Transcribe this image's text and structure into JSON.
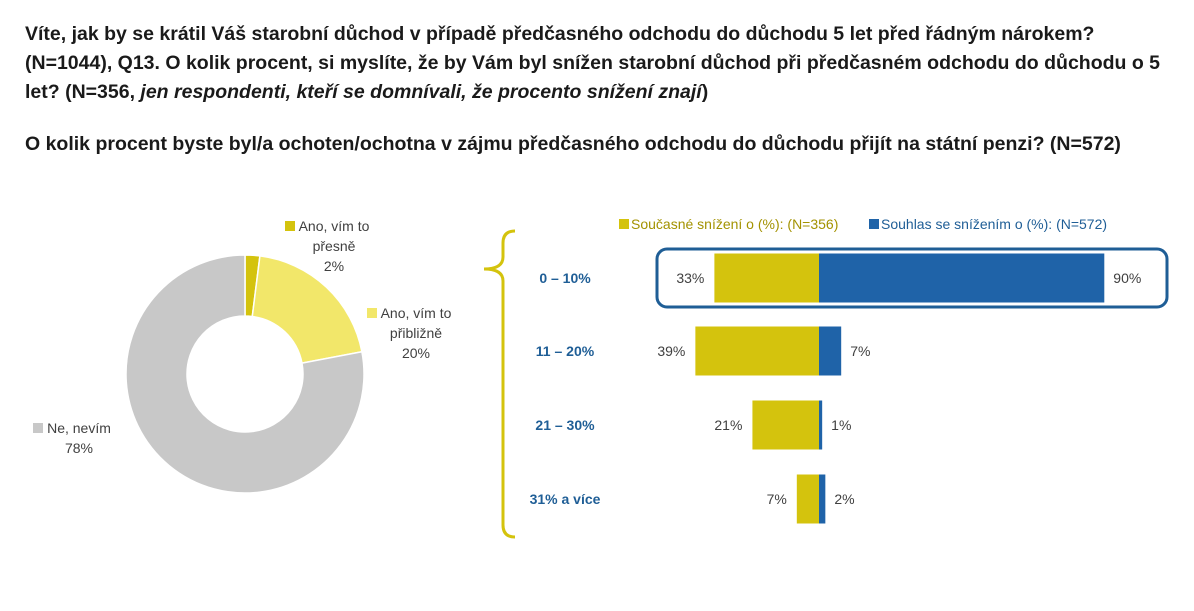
{
  "header": {
    "question1_part1": "Víte, jak by se krátil Váš starobní důchod v případě předčasného odchodu do důchodu 5 let před řádným nárokem?(N=1044), Q13. O kolik procent, si myslíte, že by Vám byl snížen starobní důchod při předčasném odchodu do důchodu o 5 let? (N=356, ",
    "question1_italic": "jen respondenti, kteří se domnívali, že procento snížení znají",
    "question1_end": ")",
    "question2": "O kolik procent byste byl/a ochoten/ochotna v zájmu předčasného odchodu do důchodu přijít na státní penzi? (N=572)"
  },
  "colors": {
    "yellow": "#d4c30d",
    "light_yellow": "#f2e76a",
    "gray": "#c8c8c8",
    "blue": "#1f63a8",
    "cat_blue": "#1f5e96",
    "yellow_label": "#a39200"
  },
  "chart_data": [
    {
      "type": "pie",
      "donut": true,
      "slices": [
        {
          "label_lines": [
            "Ano, vím to",
            "přesně"
          ],
          "value": 2,
          "value_label": "2%",
          "color": "#d4c30d"
        },
        {
          "label_lines": [
            "Ano, vím to",
            "přibližně"
          ],
          "value": 20,
          "value_label": "20%",
          "color": "#f2e76a"
        },
        {
          "label_lines": [
            "Ne, nevím"
          ],
          "value": 78,
          "value_label": "78%",
          "color": "#c8c8c8"
        }
      ]
    },
    {
      "type": "bar",
      "orientation": "horizontal",
      "layout": "diverging",
      "categories": [
        "0 – 10%",
        "11 – 20%",
        "21 – 30%",
        "31% a více"
      ],
      "series": [
        {
          "name": "Současné snížení o (%): (N=356)",
          "values": [
            33,
            39,
            21,
            7
          ],
          "value_labels": [
            "33%",
            "39%",
            "21%",
            "7%"
          ],
          "color": "#d4c30d",
          "side": "left"
        },
        {
          "name": "Souhlas se snížením o (%): (N=572)",
          "values": [
            90,
            7,
            1,
            2
          ],
          "value_labels": [
            "90%",
            "7%",
            "1%",
            "2%"
          ],
          "color": "#1f63a8",
          "side": "right"
        }
      ],
      "highlight_category": "0 – 10%",
      "legend_position": "top"
    }
  ]
}
